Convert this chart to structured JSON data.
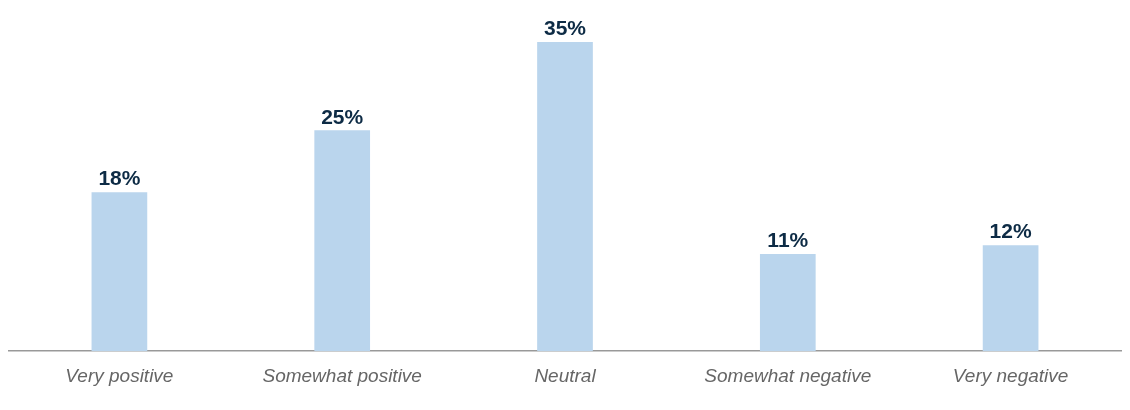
{
  "chart_data": {
    "type": "bar",
    "categories": [
      "Very positive",
      "Somewhat positive",
      "Neutral",
      "Somewhat negative",
      "Very negative"
    ],
    "values": [
      18,
      25,
      35,
      11,
      12
    ],
    "value_labels": [
      "18%",
      "25%",
      "35%",
      "11%",
      "12%"
    ],
    "color": "#bad5ed",
    "grid": false,
    "legend": false
  }
}
